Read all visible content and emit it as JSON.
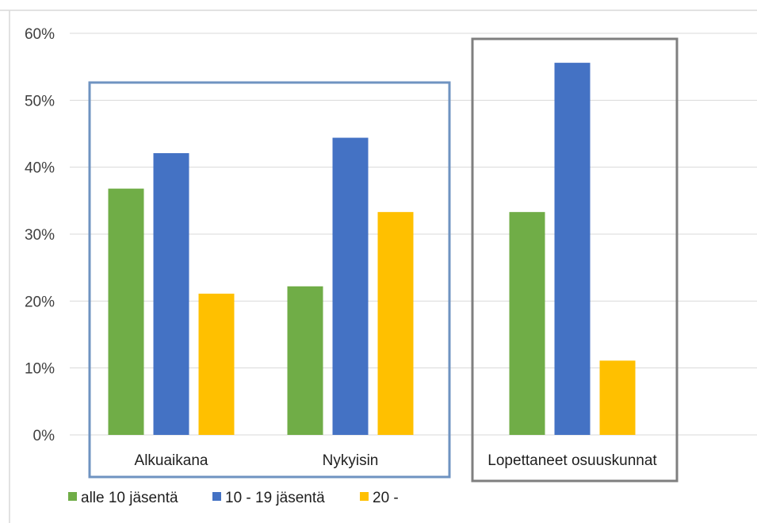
{
  "chart_data": {
    "type": "bar",
    "categories": [
      "Alkuaikana",
      "Nykyisin",
      "Lopettaneet osuuskunnat"
    ],
    "series": [
      {
        "name": "alle 10 jäsentä",
        "color": "#70AD47",
        "values": [
          0.368,
          0.222,
          0.333
        ]
      },
      {
        "name": "10 - 19 jäsentä",
        "color": "#4472C4",
        "values": [
          0.421,
          0.444,
          0.556
        ]
      },
      {
        "name": "20 -",
        "color": "#FFC000",
        "values": [
          0.211,
          0.333,
          0.111
        ]
      }
    ],
    "yticks": [
      "0%",
      "10%",
      "20%",
      "30%",
      "40%",
      "50%",
      "60%"
    ],
    "ylim": [
      0,
      0.6
    ],
    "grid": true,
    "legend_position": "bottom-left",
    "title": "",
    "xlabel": "",
    "ylabel": "",
    "colors": {
      "grid": "#d9d9d9",
      "group_box_blue": "#6f93c1",
      "group_box_gray": "#7f7f7f",
      "frame": "#d9d9d9"
    }
  }
}
